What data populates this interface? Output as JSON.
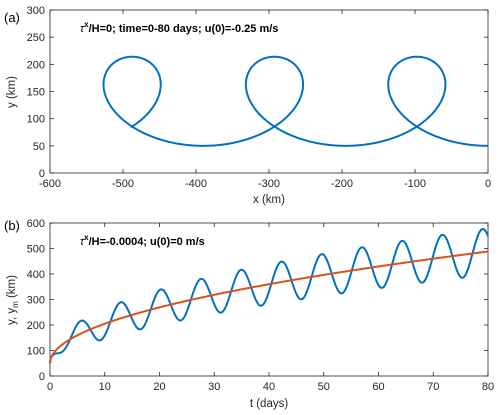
{
  "chart_data": [
    {
      "type": "line",
      "panel_label": "(a)",
      "annotation": {
        "tau": "τ",
        "sup": "x",
        "rest": "/H=0;  time=0-80 days;   u(0)=-0.25 m/s"
      },
      "xlabel": "x (km)",
      "ylabel": "y (km)",
      "xlim": [
        -600,
        0
      ],
      "ylim": [
        0,
        300
      ],
      "xticks": [
        -600,
        -500,
        -400,
        -300,
        -200,
        -100,
        0
      ],
      "yticks": [
        0,
        50,
        100,
        150,
        200,
        250,
        300
      ],
      "series": [
        {
          "color": "#0072BD",
          "trajectory": {
            "x_start": 0,
            "y_start": 50,
            "drift_per_loop_km": -195,
            "loop_radius_km": 82,
            "loops": 2.85
          }
        }
      ],
      "grid": false
    },
    {
      "type": "line",
      "panel_label": "(b)",
      "annotation": {
        "tau": "τ",
        "sup": "x",
        "rest": "/H=-0.0004;   u(0)=0 m/s"
      },
      "xlabel": "t (days)",
      "ylabel": "y, y",
      "ylabel_sub": "m",
      "ylabel_unit": " (km)",
      "xlim": [
        0,
        80
      ],
      "ylim": [
        0,
        600
      ],
      "xticks": [
        0,
        10,
        20,
        30,
        40,
        50,
        60,
        70,
        80
      ],
      "yticks": [
        0,
        100,
        200,
        300,
        400,
        500,
        600
      ],
      "series": [
        {
          "color": "#0072BD",
          "oscillating": {
            "y0": 50,
            "sqrt_coef": 49,
            "amp": 60,
            "amp_growth": 0.2,
            "period_days": 7.35
          }
        },
        {
          "color": "#D95319",
          "mean": {
            "y0": 50,
            "sqrt_coef": 49
          }
        }
      ],
      "grid": false
    }
  ]
}
